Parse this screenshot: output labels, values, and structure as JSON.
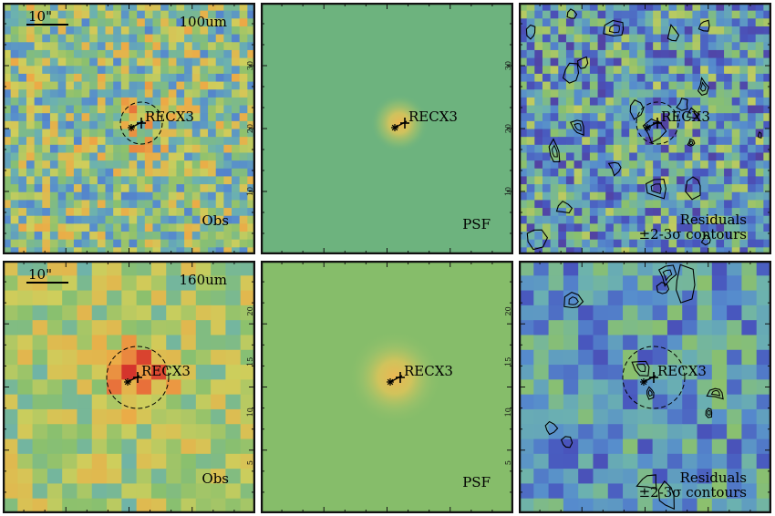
{
  "figure": {
    "rows": [
      {
        "band": "100um",
        "scale_bar": "10\"",
        "panels": [
          {
            "kind": "obs",
            "label": "Obs",
            "source": "RECX3",
            "band_label": "100um",
            "show_scale": true
          },
          {
            "kind": "psf",
            "label": "PSF",
            "source": "RECX3"
          },
          {
            "kind": "res",
            "label": "Residuals",
            "sublabel": "±2-3σ contours",
            "source": "RECX3"
          }
        ]
      },
      {
        "band": "160um",
        "scale_bar": "10\"",
        "panels": [
          {
            "kind": "obs",
            "label": "Obs",
            "source": "RECX3",
            "band_label": "160um",
            "show_scale": true
          },
          {
            "kind": "psf",
            "label": "PSF",
            "source": "RECX3"
          },
          {
            "kind": "res",
            "label": "Residuals",
            "sublabel": "±2-3σ contours",
            "source": "RECX3"
          }
        ]
      }
    ],
    "axis_tick_labels_row1": [
      "30",
      "20",
      "10"
    ],
    "axis_tick_labels_row2": [
      "20",
      "15",
      "10",
      "5"
    ],
    "colors": {
      "frame": "#111111",
      "psf_bg": "#6db37e",
      "psf_bg2": "#86bd6a",
      "peak": "#e8c24a",
      "marker": "#000000"
    }
  }
}
